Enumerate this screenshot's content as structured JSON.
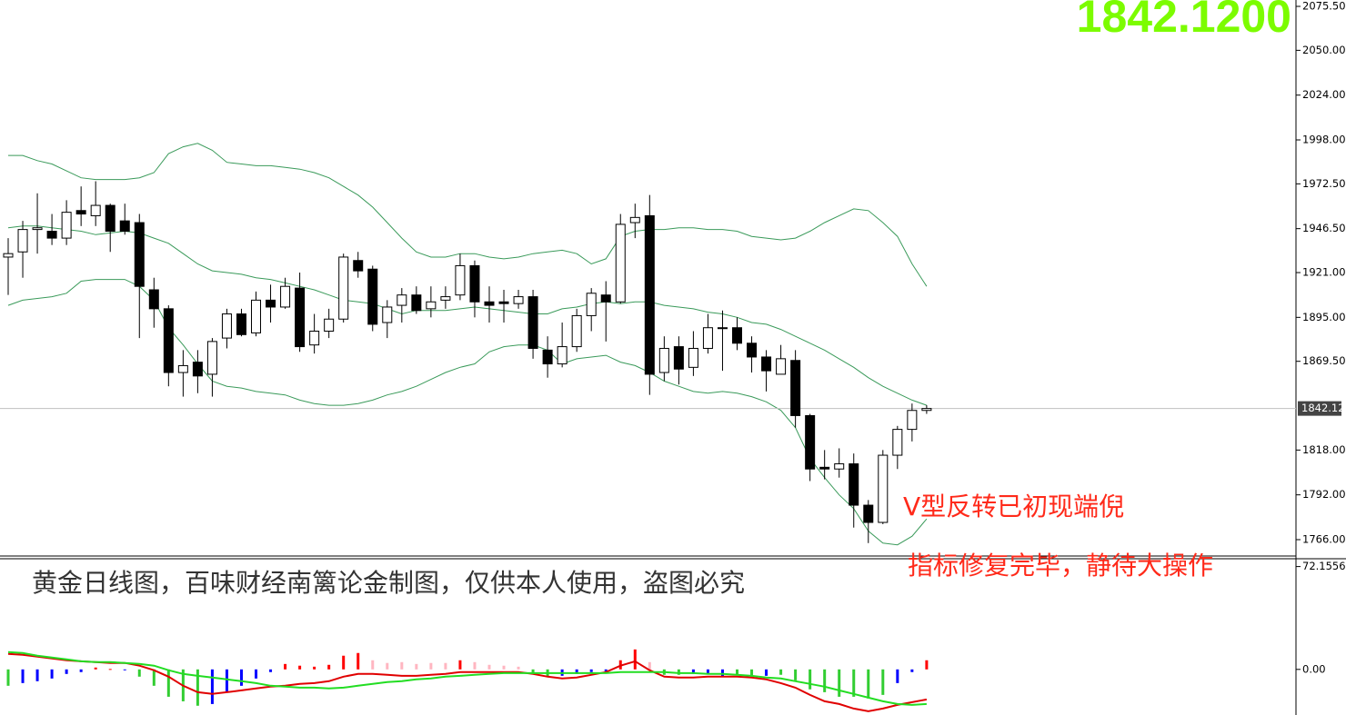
{
  "chart_data": [
    {
      "type": "candlestick",
      "price_display": "1842.1200",
      "last_price": 1842.12,
      "ylim": [
        1756.5,
        2079.2
      ],
      "yticks": [
        {
          "value": 1766,
          "label": "1766.00"
        },
        {
          "value": 1792,
          "label": "1792.00"
        },
        {
          "value": 1818,
          "label": "1818.00"
        },
        {
          "value": 1869.5,
          "label": "1869.50"
        },
        {
          "value": 1895,
          "label": "1895.00"
        },
        {
          "value": 1921,
          "label": "1921.00"
        },
        {
          "value": 1946.5,
          "label": "1946.50"
        },
        {
          "value": 1972.5,
          "label": "1972.50"
        },
        {
          "value": 1998,
          "label": "1998.00"
        },
        {
          "value": 2024,
          "label": "2024.00"
        },
        {
          "value": 2050,
          "label": "2050.00"
        },
        {
          "value": 2075.5,
          "label": "2075.50"
        }
      ],
      "bull_color": "#ffffff",
      "bear_color": "#000000",
      "band_color": "#3a9a5a",
      "open": [
        1930,
        1933,
        1946,
        1945,
        1941,
        1957,
        1954,
        1960,
        1951,
        1950,
        1911,
        1900,
        1863,
        1869,
        1862,
        1883,
        1897,
        1886,
        1905,
        1901,
        1912,
        1879,
        1887,
        1894,
        1928,
        1923,
        1892,
        1902,
        1908,
        1900,
        1905,
        1908,
        1925,
        1904,
        1904,
        1903,
        1907,
        1876,
        1868,
        1878,
        1896,
        1908,
        1904,
        1950,
        1954,
        1863,
        1878,
        1866,
        1877,
        1889,
        1889,
        1880,
        1872,
        1862,
        1870,
        1838,
        1808,
        1807,
        1810,
        1786,
        1776,
        1815,
        1830,
        1841
      ],
      "high": [
        1941,
        1951,
        1967,
        1955,
        1963,
        1971,
        1974,
        1961,
        1961,
        1955,
        1918,
        1902,
        1876,
        1876,
        1883,
        1900,
        1900,
        1910,
        1914,
        1918,
        1921,
        1897,
        1900,
        1932,
        1933,
        1925,
        1905,
        1912,
        1913,
        1913,
        1913,
        1932,
        1928,
        1913,
        1911,
        1911,
        1911,
        1884,
        1892,
        1900,
        1912,
        1916,
        1955,
        1961,
        1966,
        1884,
        1884,
        1887,
        1897,
        1899,
        1895,
        1884,
        1876,
        1879,
        1876,
        1839,
        1818,
        1819,
        1816,
        1789,
        1818,
        1832,
        1845,
        1844
      ],
      "low": [
        1908,
        1918,
        1932,
        1937,
        1937,
        1948,
        1948,
        1933,
        1943,
        1883,
        1889,
        1855,
        1849,
        1851,
        1849,
        1877,
        1884,
        1884,
        1892,
        1900,
        1875,
        1874,
        1883,
        1892,
        1918,
        1887,
        1883,
        1892,
        1897,
        1895,
        1900,
        1905,
        1895,
        1892,
        1892,
        1900,
        1871,
        1860,
        1866,
        1875,
        1887,
        1881,
        1903,
        1941,
        1850,
        1858,
        1856,
        1861,
        1874,
        1864,
        1876,
        1863,
        1852,
        1862,
        1831,
        1800,
        1801,
        1802,
        1773,
        1764,
        1775,
        1807,
        1823,
        1839
      ],
      "close": [
        1932,
        1946,
        1947,
        1941,
        1956,
        1955,
        1960,
        1945,
        1945,
        1913,
        1900,
        1863,
        1867,
        1861,
        1881,
        1897,
        1885,
        1905,
        1901,
        1913,
        1878,
        1887,
        1894,
        1930,
        1922,
        1891,
        1901,
        1908,
        1899,
        1904,
        1907,
        1925,
        1904,
        1902,
        1903,
        1907,
        1877,
        1868,
        1878,
        1896,
        1909,
        1904,
        1949,
        1953,
        1862,
        1877,
        1865,
        1877,
        1889,
        1889,
        1880,
        1872,
        1864,
        1871,
        1838,
        1807,
        1807,
        1810,
        1786,
        1776,
        1815,
        1830,
        1841,
        1842.12
      ],
      "overlays": [
        {
          "values": [
            1989,
            1989,
            1986,
            1984,
            1980,
            1976,
            1975,
            1975,
            1975,
            1976,
            1979,
            1990,
            1994,
            1996,
            1992,
            1985,
            1984,
            1983,
            1983,
            1982,
            1981,
            1979,
            1976,
            1971,
            1966,
            1959,
            1950,
            1941,
            1933,
            1930,
            1930,
            1932,
            1932,
            1930,
            1929,
            1930,
            1932,
            1933,
            1934,
            1932,
            1926,
            1929,
            1942,
            1945,
            1946,
            1946,
            1947,
            1947,
            1946,
            1946,
            1945,
            1942,
            1941,
            1940,
            1941,
            1945,
            1950,
            1954,
            1958,
            1957,
            1950,
            1942,
            1926,
            1913
          ]
        },
        {
          "values": [
            1947,
            1948,
            1948,
            1947,
            1946,
            1945,
            1943,
            1944,
            1945,
            1944,
            1941,
            1938,
            1932,
            1926,
            1922,
            1921,
            1920,
            1918,
            1917,
            1915,
            1913,
            1911,
            1908,
            1905,
            1904,
            1903,
            1900,
            1897,
            1899,
            1899,
            1899,
            1900,
            1901,
            1900,
            1899,
            1898,
            1897,
            1897,
            1900,
            1901,
            1903,
            1904,
            1903,
            1904,
            1904,
            1902,
            1901,
            1900,
            1898,
            1897,
            1895,
            1892,
            1891,
            1888,
            1884,
            1880,
            1876,
            1871,
            1866,
            1860,
            1855,
            1851,
            1847,
            1844
          ]
        },
        {
          "values": [
            1902,
            1905,
            1906,
            1907,
            1909,
            1916,
            1917,
            1917,
            1917,
            1913,
            1905,
            1889,
            1879,
            1868,
            1858,
            1855,
            1854,
            1852,
            1851,
            1850,
            1847,
            1845,
            1844,
            1844,
            1845,
            1847,
            1850,
            1852,
            1855,
            1859,
            1863,
            1866,
            1868,
            1875,
            1878,
            1879,
            1879,
            1876,
            1868,
            1871,
            1872,
            1873,
            1869,
            1867,
            1863,
            1858,
            1855,
            1852,
            1851,
            1852,
            1851,
            1849,
            1846,
            1841,
            1831,
            1813,
            1802,
            1792,
            1784,
            1771,
            1764,
            1763,
            1768,
            1778
          ]
        }
      ],
      "annotations": [
        "V型反转已初现端倪",
        "指标修复完毕，静待大操作"
      ]
    },
    {
      "type": "oscillator",
      "ylim": [
        -32,
        77
      ],
      "yticks": [
        {
          "value": 0,
          "label": "0.00"
        },
        72.1556
      ],
      "annotations": [
        "黄金日线图，百味财经南篱论金制图，仅供本人使用，盗图必究"
      ],
      "histogram": [
        -11.5,
        -9.6,
        -8.3,
        -6.4,
        -3.2,
        -1.9,
        1.3,
        0.3,
        -0.3,
        -5.1,
        -11.5,
        -19.2,
        -22.4,
        -25.5,
        -24.3,
        -16,
        -11.5,
        -6.4,
        -1.9,
        3.8,
        2.6,
        1.9,
        3.2,
        9.6,
        11.5,
        6.4,
        4.5,
        5.1,
        3.8,
        4.5,
        4.5,
        6.4,
        5.1,
        3.2,
        2.6,
        1.9,
        -3.2,
        -5.1,
        -4.5,
        -3.2,
        -1.9,
        -1.3,
        6.4,
        14,
        5.1,
        -3.8,
        -3.8,
        -3.2,
        -2.6,
        -5.1,
        -3.8,
        -5.1,
        -4.5,
        -3.8,
        -7.7,
        -14,
        -16,
        -19.2,
        -19.2,
        -20.4,
        -17.9,
        -9.6,
        -1.9,
        6.4
      ],
      "histogram_colors": [
        "#32cd32",
        "#0000ff",
        "#0000ff",
        "#0000ff",
        "#0000ff",
        "#0000ff",
        "#ff0000",
        "#ff0000",
        "#0000ff",
        "#32cd32",
        "#32cd32",
        "#32cd32",
        "#32cd32",
        "#32cd32",
        "#0000ff",
        "#0000ff",
        "#0000ff",
        "#0000ff",
        "#0000ff",
        "#ff0000",
        "#ff0000",
        "#ff0000",
        "#ff0000",
        "#ff0000",
        "#ff0000",
        "#ffb6c1",
        "#ffb6c1",
        "#ffb6c1",
        "#ffb6c1",
        "#ffb6c1",
        "#ffb6c1",
        "#ff0000",
        "#ffb6c1",
        "#ffb6c1",
        "#ffb6c1",
        "#ffb6c1",
        "#32cd32",
        "#32cd32",
        "#0000ff",
        "#0000ff",
        "#0000ff",
        "#0000ff",
        "#ff0000",
        "#ff0000",
        "#ffb6c1",
        "#32cd32",
        "#32cd32",
        "#0000ff",
        "#0000ff",
        "#0000ff",
        "#32cd32",
        "#32cd32",
        "#0000ff",
        "#32cd32",
        "#32cd32",
        "#32cd32",
        "#32cd32",
        "#32cd32",
        "#32cd32",
        "#32cd32",
        "#32cd32",
        "#0000ff",
        "#0000ff",
        "#ff0000"
      ],
      "series": [
        {
          "color": "#e00000",
          "values": [
            10.9,
            10.2,
            8.9,
            7.7,
            6.4,
            5.7,
            5.1,
            4.5,
            4.5,
            2.6,
            -0.6,
            -5.1,
            -11.5,
            -16,
            -17.2,
            -16,
            -14.7,
            -13.4,
            -12.1,
            -11.5,
            -10.2,
            -9.6,
            -8.3,
            -5.1,
            -3.2,
            -3.2,
            -3.8,
            -4.5,
            -4.5,
            -3.8,
            -3.2,
            -1.9,
            -1.9,
            -1.9,
            -1.9,
            -1.9,
            -3.2,
            -5.1,
            -6.4,
            -5.7,
            -3.8,
            -1.9,
            2.6,
            5.7,
            -0.6,
            -5.1,
            -5.7,
            -5.7,
            -5.1,
            -5.1,
            -5.1,
            -5.7,
            -7,
            -9.6,
            -12.8,
            -17.9,
            -22.4,
            -24.3,
            -27.5,
            -29.4,
            -27.5,
            -24.9,
            -23,
            -21.1
          ]
        },
        {
          "color": "#22dd22",
          "values": [
            12.1,
            11.5,
            9.6,
            8.3,
            7,
            5.7,
            5.1,
            5.1,
            4.5,
            3.8,
            2.6,
            -0.6,
            -3.2,
            -4.5,
            -5.7,
            -7,
            -8.3,
            -9.6,
            -11.5,
            -12.1,
            -12.8,
            -12.8,
            -13.4,
            -12.8,
            -11.5,
            -10.2,
            -8.9,
            -8.3,
            -7,
            -6.4,
            -5.1,
            -4.5,
            -3.8,
            -3.2,
            -2.6,
            -2.6,
            -2.6,
            -2.6,
            -2.6,
            -2.6,
            -2.6,
            -2.6,
            -1.9,
            -1.9,
            -1.9,
            -1.9,
            -2.6,
            -2.6,
            -3.2,
            -3.2,
            -3.8,
            -4.5,
            -5.7,
            -6.4,
            -8.3,
            -10.2,
            -12.1,
            -14.7,
            -17.2,
            -19.8,
            -22.4,
            -24.3,
            -24.9,
            -24.3
          ]
        }
      ]
    }
  ]
}
